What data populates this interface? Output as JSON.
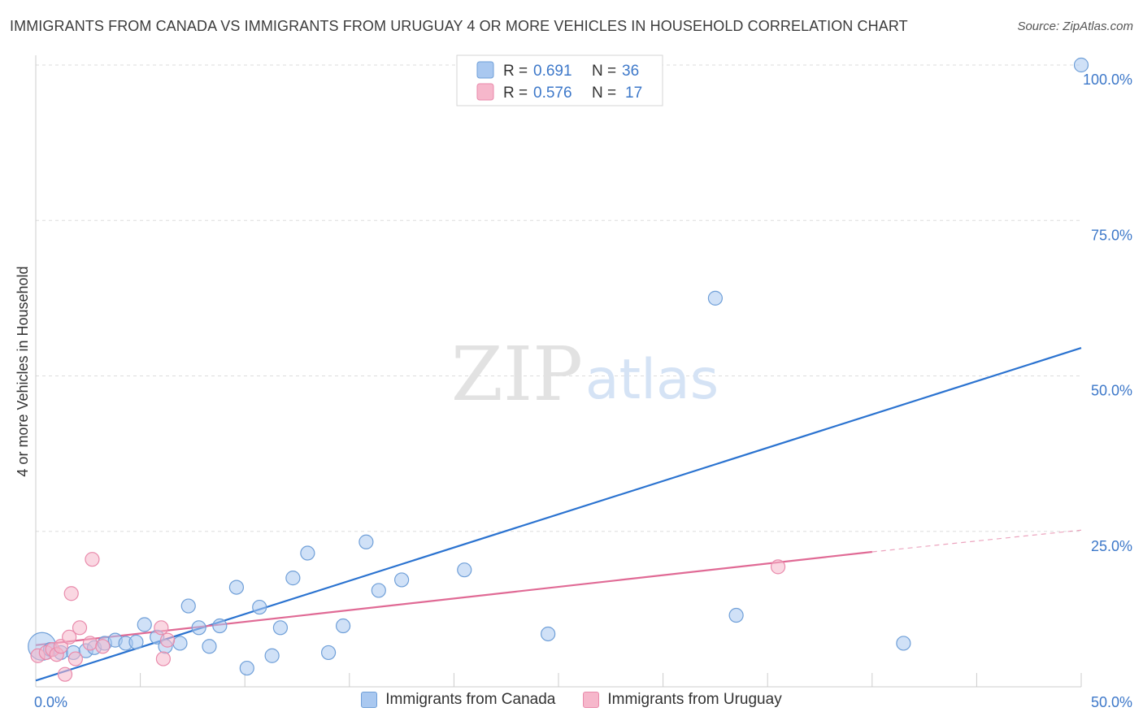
{
  "title": "IMMIGRANTS FROM CANADA VS IMMIGRANTS FROM URUGUAY 4 OR MORE VEHICLES IN HOUSEHOLD CORRELATION CHART",
  "source": "Source: ZipAtlas.com",
  "watermark": {
    "zip": "ZIP",
    "atlas": "atlas"
  },
  "colors": {
    "blue_line": "#2b73d0",
    "blue_fill": "#a9c8f0",
    "blue_stroke": "#6f9fd8",
    "pink_line": "#e06a95",
    "pink_fill": "#f6b7cb",
    "pink_stroke": "#e98aab",
    "tick_label": "#3d78c9",
    "grid": "#dddddd"
  },
  "legend": {
    "rows": [
      {
        "r_label": "R =",
        "r_value": "0.691",
        "n_label": "N =",
        "n_value": "36"
      },
      {
        "r_label": "R =",
        "r_value": "0.576",
        "n_label": "N =",
        "n_value": "17"
      }
    ]
  },
  "chart_data": {
    "type": "scatter",
    "title": "IMMIGRANTS FROM CANADA VS IMMIGRANTS FROM URUGUAY 4 OR MORE VEHICLES IN HOUSEHOLD CORRELATION CHART",
    "xlabel": "",
    "ylabel": "4 or more Vehicles in Household",
    "xlim": [
      0,
      50
    ],
    "ylim": [
      0,
      100
    ],
    "x_tick_labels": [
      {
        "value": 0,
        "label": "0.0%"
      },
      {
        "value": 50,
        "label": "50.0%"
      }
    ],
    "y_tick_labels": [
      {
        "value": 25,
        "label": "25.0%"
      },
      {
        "value": 50,
        "label": "50.0%"
      },
      {
        "value": 75,
        "label": "75.0%"
      },
      {
        "value": 100,
        "label": "100.0%"
      }
    ],
    "series": [
      {
        "name": "Immigrants from Canada",
        "color": "blue",
        "points": [
          {
            "x": 0.3,
            "y": 6.5,
            "big": true
          },
          {
            "x": 0.7,
            "y": 6.0
          },
          {
            "x": 1.2,
            "y": 5.5
          },
          {
            "x": 1.8,
            "y": 5.5
          },
          {
            "x": 2.4,
            "y": 5.8
          },
          {
            "x": 2.8,
            "y": 6.3
          },
          {
            "x": 3.3,
            "y": 7.0
          },
          {
            "x": 3.8,
            "y": 7.5
          },
          {
            "x": 4.3,
            "y": 7.0
          },
          {
            "x": 4.8,
            "y": 7.2
          },
          {
            "x": 5.2,
            "y": 10.0
          },
          {
            "x": 5.8,
            "y": 8.0
          },
          {
            "x": 6.2,
            "y": 6.5
          },
          {
            "x": 6.9,
            "y": 7.0
          },
          {
            "x": 7.3,
            "y": 13.0
          },
          {
            "x": 7.8,
            "y": 9.5
          },
          {
            "x": 8.3,
            "y": 6.5
          },
          {
            "x": 8.8,
            "y": 9.8
          },
          {
            "x": 9.6,
            "y": 16.0
          },
          {
            "x": 10.1,
            "y": 3.0
          },
          {
            "x": 10.7,
            "y": 12.8
          },
          {
            "x": 11.3,
            "y": 5.0
          },
          {
            "x": 11.7,
            "y": 9.5
          },
          {
            "x": 12.3,
            "y": 17.5
          },
          {
            "x": 13.0,
            "y": 21.5
          },
          {
            "x": 14.0,
            "y": 5.5
          },
          {
            "x": 14.7,
            "y": 9.8
          },
          {
            "x": 15.8,
            "y": 23.3
          },
          {
            "x": 16.4,
            "y": 15.5
          },
          {
            "x": 17.5,
            "y": 17.2
          },
          {
            "x": 20.5,
            "y": 18.8
          },
          {
            "x": 24.5,
            "y": 8.5
          },
          {
            "x": 32.5,
            "y": 62.5
          },
          {
            "x": 33.5,
            "y": 11.5
          },
          {
            "x": 41.5,
            "y": 7.0
          },
          {
            "x": 50.0,
            "y": 100.0
          }
        ],
        "trendline": {
          "x0": 0,
          "y0": 1.0,
          "x1": 50,
          "y1": 54.5
        }
      },
      {
        "name": "Immigrants from Uruguay",
        "color": "pink",
        "points": [
          {
            "x": 0.1,
            "y": 5.0
          },
          {
            "x": 0.5,
            "y": 5.5
          },
          {
            "x": 0.8,
            "y": 6.0
          },
          {
            "x": 1.0,
            "y": 5.2
          },
          {
            "x": 1.2,
            "y": 6.5
          },
          {
            "x": 1.4,
            "y": 2.0
          },
          {
            "x": 1.6,
            "y": 8.0
          },
          {
            "x": 1.7,
            "y": 15.0
          },
          {
            "x": 1.9,
            "y": 4.5
          },
          {
            "x": 2.1,
            "y": 9.5
          },
          {
            "x": 2.6,
            "y": 7.0
          },
          {
            "x": 2.7,
            "y": 20.5
          },
          {
            "x": 3.2,
            "y": 6.5
          },
          {
            "x": 6.0,
            "y": 9.5
          },
          {
            "x": 6.1,
            "y": 4.5
          },
          {
            "x": 6.3,
            "y": 7.5
          },
          {
            "x": 35.5,
            "y": 19.3
          }
        ],
        "trendline": {
          "x0": 0,
          "y0": 6.7,
          "x1": 40,
          "y1": 21.7,
          "dash_to_x": 50,
          "dash_to_y": 25.2
        }
      }
    ],
    "legend_labels": [
      "Immigrants from Canada",
      "Immigrants from Uruguay"
    ]
  }
}
